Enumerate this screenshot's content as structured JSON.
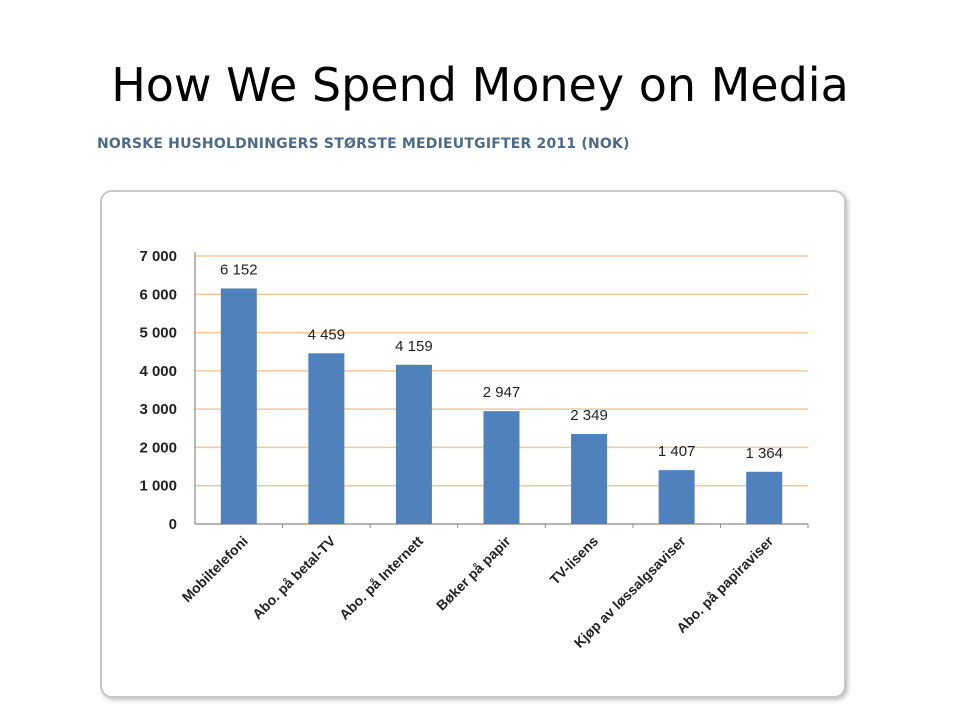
{
  "slide": {
    "title": "How We Spend Money on Media"
  },
  "chart_data": {
    "type": "bar",
    "title": "NORSKE HUSHOLDNINGERS STØRSTE MEDIEUTGIFTER 2011 (NOK)",
    "categories": [
      "Mobiltelefoni",
      "Abo. på betal-TV",
      "Abo. på Internett",
      "Bøker på papir",
      "TV-lisens",
      "Kjøp av løssalgsaviser",
      "Abo. på papiraviser"
    ],
    "values": [
      6152,
      4459,
      4159,
      2947,
      2349,
      1407,
      1364
    ],
    "value_labels": [
      "6 152",
      "4 459",
      "4 159",
      "2 947",
      "2 349",
      "1 407",
      "1 364"
    ],
    "y_ticks": [
      0,
      1000,
      2000,
      3000,
      4000,
      5000,
      6000,
      7000
    ],
    "y_tick_labels": [
      "0",
      "1 000",
      "2 000",
      "3 000",
      "4 000",
      "5 000",
      "6 000",
      "7 000"
    ],
    "ylim": [
      0,
      7000
    ],
    "xlabel": "",
    "ylabel": "",
    "grid": true,
    "legend": "none",
    "bar_color": "#4f81bd",
    "grid_color": "#f5c89a"
  }
}
